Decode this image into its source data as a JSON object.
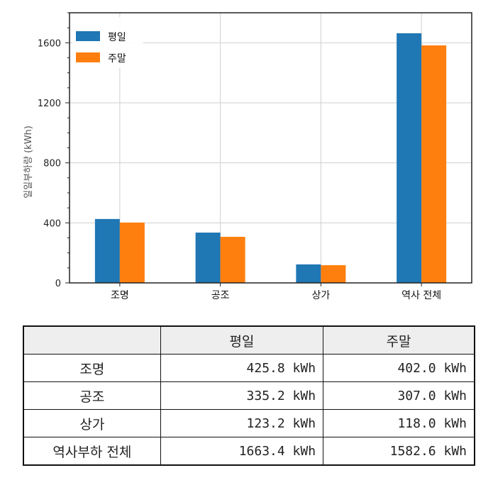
{
  "chart_data": {
    "type": "bar",
    "categories": [
      "조명",
      "공조",
      "상가",
      "역사 전체"
    ],
    "series": [
      {
        "name": "평일",
        "values": [
          425.8,
          335.2,
          123.2,
          1663.4
        ],
        "color": "#1f77b4"
      },
      {
        "name": "주말",
        "values": [
          402.0,
          307.0,
          118.0,
          1582.6
        ],
        "color": "#ff7f0e"
      }
    ],
    "ylabel": "일일부하량 (kWh)",
    "yticks": [
      0,
      400,
      800,
      1200,
      1600
    ],
    "ylim": [
      0,
      1800
    ],
    "grid": true,
    "legend": "top-left"
  },
  "table": {
    "headers": [
      "",
      "평일",
      "주말"
    ],
    "rows": [
      [
        "조명",
        "425.8 kWh",
        "402.0 kWh"
      ],
      [
        "공조",
        "335.2 kWh",
        "307.0 kWh"
      ],
      [
        "상가",
        "123.2 kWh",
        "118.0 kWh"
      ],
      [
        "역사부하 전체",
        "1663.4 kWh",
        "1582.6 kWh"
      ]
    ]
  }
}
